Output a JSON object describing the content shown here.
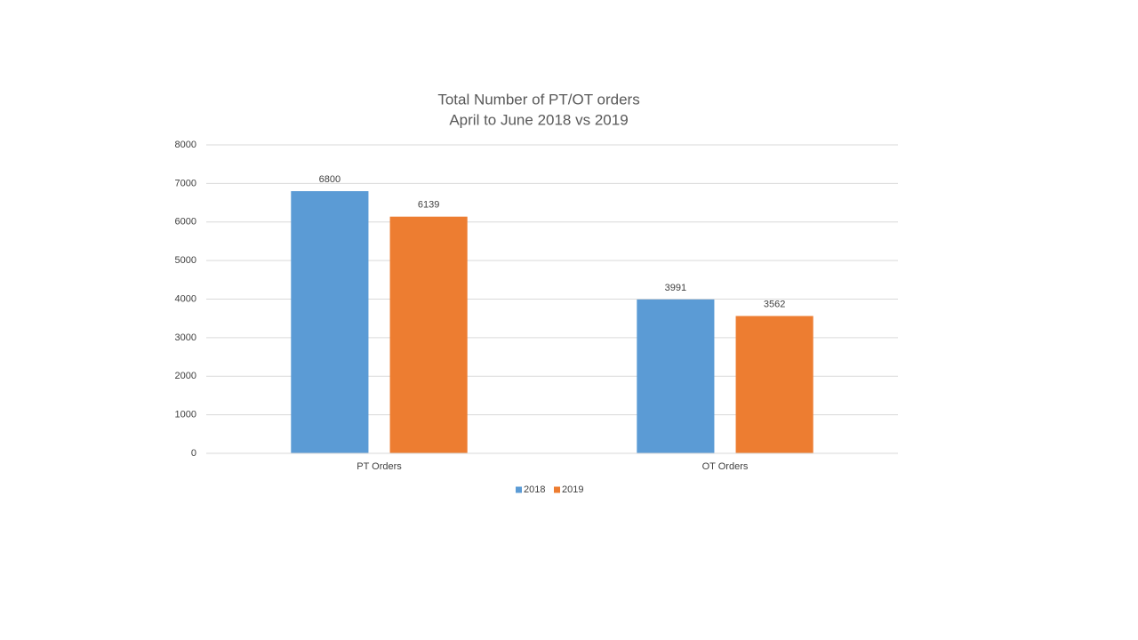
{
  "chart_data": {
    "type": "bar",
    "title": "Total Number of PT/OT orders",
    "subtitle": "April to June 2018 vs 2019",
    "categories": [
      "PT Orders",
      "OT Orders"
    ],
    "series": [
      {
        "name": "2018",
        "color": "#5b9bd5",
        "values": [
          6800,
          3991
        ]
      },
      {
        "name": "2019",
        "color": "#ed7d31",
        "values": [
          6139,
          3562
        ]
      }
    ],
    "ylim": [
      0,
      8000
    ],
    "yticks": [
      0,
      1000,
      2000,
      3000,
      4000,
      5000,
      6000,
      7000,
      8000
    ],
    "grid": true,
    "legend": "bottom"
  }
}
